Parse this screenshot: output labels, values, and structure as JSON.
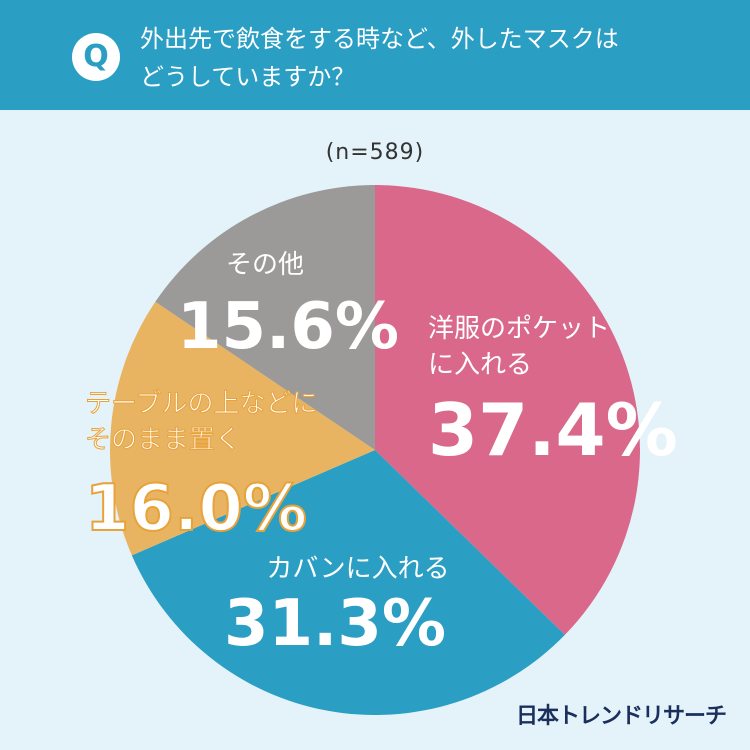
{
  "header": {
    "q_mark": "Q",
    "question_line1": "外出先で飲食をする時など、外したマスクは",
    "question_line2": "どうしていますか？",
    "background": "#2a9ec3"
  },
  "sample_size": "(n=589)",
  "brand": "日本トレンドリサーチ",
  "chart_data": {
    "type": "pie",
    "n": 589,
    "slices": [
      {
        "label_lines": [
          "洋服のポケット",
          "に入れる"
        ],
        "value": 37.4,
        "value_text": "37.4%",
        "color": "#d9688a",
        "text_color": "#ffffff"
      },
      {
        "label_lines": [
          "カバンに入れる"
        ],
        "value": 31.3,
        "value_text": "31.3%",
        "color": "#2a9ec3",
        "text_color": "#ffffff"
      },
      {
        "label_lines": [
          "テーブルの上などに",
          "そのまま置く"
        ],
        "value": 16.0,
        "value_text": "16.0%",
        "color": "#e8b461",
        "text_color": "#ffffff",
        "outline_color": "#e8a23a"
      },
      {
        "label_lines": [
          "その他"
        ],
        "value": 15.6,
        "value_text": "15.6%",
        "color": "#9b9a98",
        "text_color": "#ffffff"
      }
    ]
  }
}
